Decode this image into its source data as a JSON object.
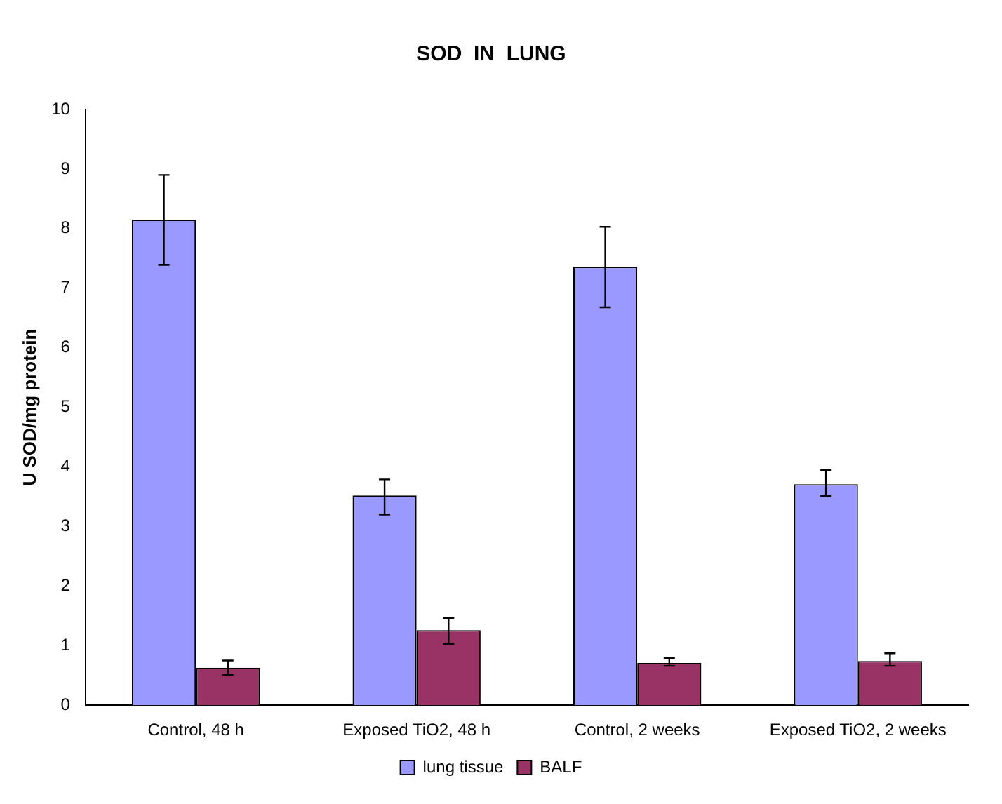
{
  "chart_data": {
    "type": "bar",
    "title": "SOD  IN  LUNG",
    "ylabel": "U SOD/mg protein",
    "categories": [
      "Control, 48 h",
      "Exposed TiO2, 48 h",
      "Control, 2 weeks",
      "Exposed TiO2, 2 weeks"
    ],
    "series": [
      {
        "name": "lung tissue",
        "color": "#9999ff",
        "values": [
          8.15,
          3.52,
          7.36,
          3.71
        ],
        "errors": [
          [
            7.39,
            8.9
          ],
          [
            3.2,
            3.79
          ],
          [
            6.68,
            8.03
          ],
          [
            3.51,
            3.95
          ]
        ]
      },
      {
        "name": "BALF",
        "color": "#993366",
        "values": [
          0.63,
          1.26,
          0.71,
          0.74
        ],
        "errors": [
          [
            0.51,
            0.75
          ],
          [
            1.03,
            1.46
          ],
          [
            0.66,
            0.79
          ],
          [
            0.66,
            0.87
          ]
        ]
      }
    ],
    "ylim": [
      0,
      10
    ],
    "yticks": [
      0,
      1,
      2,
      3,
      4,
      5,
      6,
      7,
      8,
      9,
      10
    ],
    "grid": false,
    "legend": "bottom"
  }
}
